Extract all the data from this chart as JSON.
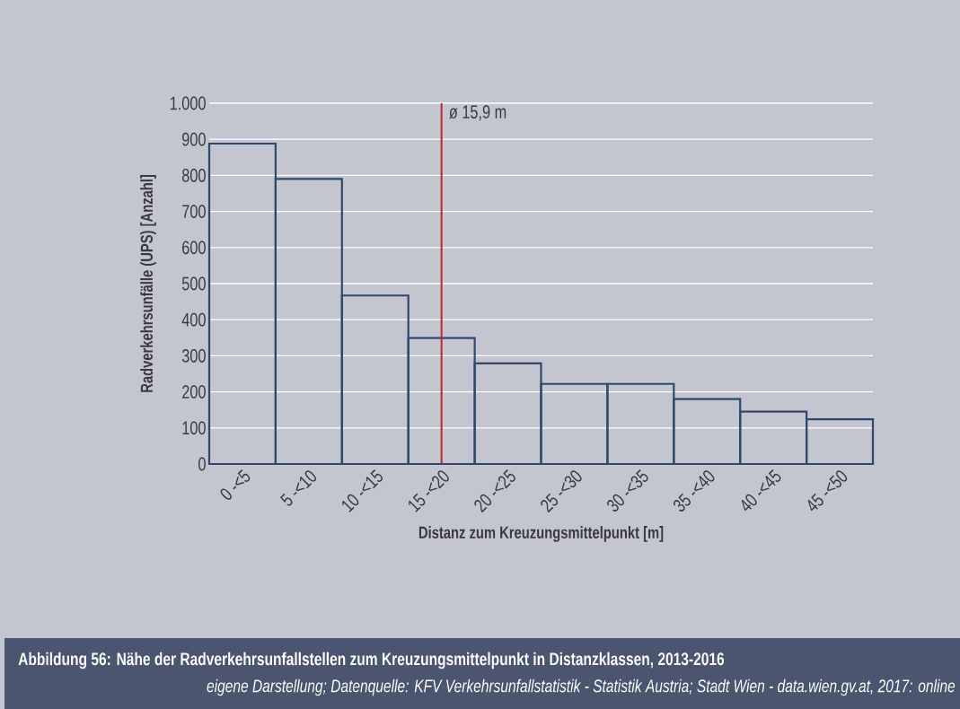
{
  "chart_data": {
    "type": "bar",
    "title": "Abbildung 56: Nähe der Radverkehrsunfallstellen zum Kreuzungsmittelpunkt in Distanzklassen, 2013-2016",
    "annotations": [
      "eigene Darstellung; Datenquelle: KFV Verkehrsunfallstatistik - Statistik Austria; Stadt Wien - data.wien.gv.at, 2017: online"
    ],
    "xlabel": "Distanz zum Kreuzungsmittelpunkt [m]",
    "ylabel": "Radverkehrsunfälle (UPS) [Anzahl]",
    "categories": [
      "0 -<5",
      "5 -<10",
      "10 -<15",
      "15 -<20",
      "20 -<25",
      "25 -<30",
      "30 -<35",
      "35 -<40",
      "40 -<45",
      "45 -<50"
    ],
    "values": [
      888,
      790,
      467,
      349,
      279,
      222,
      222,
      180,
      145,
      124
    ],
    "color": "#2e4a6b",
    "ylim": [
      0,
      1000
    ],
    "yticks": [
      0,
      100,
      200,
      300,
      400,
      500,
      600,
      700,
      800,
      900,
      {
        "value": 1000,
        "label": "1.000"
      }
    ],
    "grid": "y",
    "ref_lines": [
      {
        "axis": "x",
        "value": "15 -<20",
        "label": "ø 15,9 m",
        "color": "#c0272d"
      }
    ]
  }
}
